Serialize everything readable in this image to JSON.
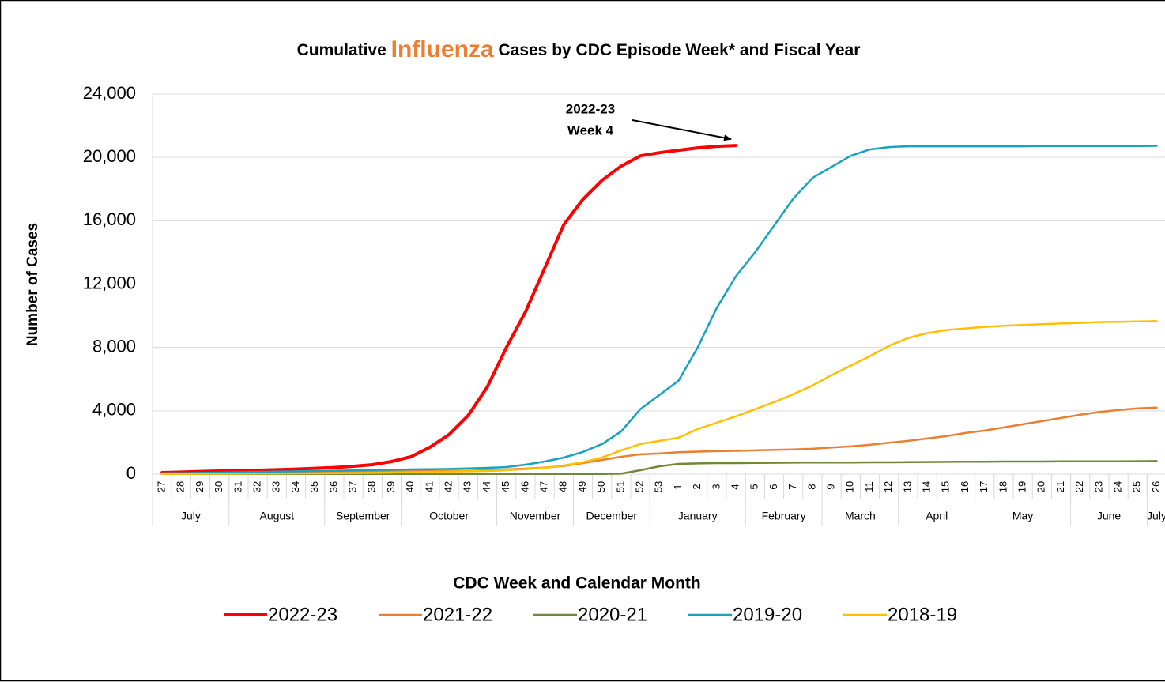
{
  "chart_data": {
    "type": "line",
    "title_parts": [
      "Cumulative ",
      "Influenza",
      " Cases by CDC Episode Week* and Fiscal Year"
    ],
    "y_label": "Number of Cases",
    "x_label": "CDC Week and Calendar Month",
    "annotation": [
      "2022-23",
      "Week 4"
    ],
    "categories": [
      "27",
      "28",
      "29",
      "30",
      "31",
      "32",
      "33",
      "34",
      "35",
      "36",
      "37",
      "38",
      "39",
      "40",
      "41",
      "42",
      "43",
      "44",
      "45",
      "46",
      "47",
      "48",
      "49",
      "50",
      "51",
      "52",
      "53",
      "1",
      "2",
      "3",
      "4",
      "5",
      "6",
      "7",
      "8",
      "9",
      "10",
      "11",
      "12",
      "13",
      "14",
      "15",
      "16",
      "17",
      "18",
      "19",
      "20",
      "21",
      "22",
      "23",
      "24",
      "25",
      "26"
    ],
    "month_groups": [
      {
        "label": "July",
        "span": 4
      },
      {
        "label": "August",
        "span": 5
      },
      {
        "label": "September",
        "span": 4
      },
      {
        "label": "October",
        "span": 5
      },
      {
        "label": "November",
        "span": 4
      },
      {
        "label": "December",
        "span": 4
      },
      {
        "label": "January",
        "span": 5
      },
      {
        "label": "February",
        "span": 4
      },
      {
        "label": "March",
        "span": 4
      },
      {
        "label": "April",
        "span": 4
      },
      {
        "label": "May",
        "span": 5
      },
      {
        "label": "June",
        "span": 4
      },
      {
        "label": "July",
        "span": 1
      }
    ],
    "ylim": [
      0,
      24000
    ],
    "yticks": [
      0,
      {
        "value": 4000,
        "label": "4,000"
      },
      {
        "value": 8000,
        "label": "8,000"
      },
      {
        "value": 12000,
        "label": "12,000"
      },
      {
        "value": 16000,
        "label": "16,000"
      },
      {
        "value": 20000,
        "label": "20,000"
      },
      {
        "value": 24000,
        "label": "24,000"
      }
    ],
    "grid": true,
    "legend": "bottom",
    "series": [
      {
        "name": "2022-23",
        "color": "#ff0000",
        "width": 4,
        "values": [
          100,
          130,
          170,
          200,
          230,
          250,
          280,
          320,
          370,
          420,
          500,
          600,
          800,
          1100,
          1700,
          2500,
          3700,
          5500,
          8000,
          10250,
          13000,
          15750,
          17350,
          18550,
          19450,
          20100,
          20300,
          20450,
          20600,
          20700,
          20750,
          null,
          null,
          null,
          null,
          null,
          null,
          null,
          null,
          null,
          null,
          null,
          null,
          null,
          null,
          null,
          null,
          null,
          null,
          null,
          null,
          null,
          null
        ]
      },
      {
        "name": "2021-22",
        "color": "#ed7d31",
        "width": 2.5,
        "values": [
          50,
          60,
          70,
          80,
          90,
          100,
          110,
          120,
          130,
          140,
          150,
          160,
          170,
          180,
          190,
          200,
          220,
          250,
          300,
          350,
          420,
          520,
          700,
          900,
          1100,
          1250,
          1300,
          1380,
          1420,
          1450,
          1470,
          1500,
          1530,
          1560,
          1600,
          1680,
          1750,
          1850,
          1980,
          2100,
          2250,
          2400,
          2600,
          2750,
          2950,
          3150,
          3350,
          3550,
          3750,
          3920,
          4050,
          4150,
          4200
        ]
      },
      {
        "name": "2020-21",
        "color": "#70883a",
        "width": 2.5,
        "values": [
          10,
          10,
          10,
          10,
          10,
          10,
          10,
          10,
          10,
          10,
          10,
          10,
          10,
          10,
          10,
          10,
          10,
          10,
          10,
          10,
          10,
          10,
          10,
          10,
          30,
          250,
          500,
          650,
          680,
          700,
          700,
          710,
          720,
          730,
          740,
          740,
          740,
          750,
          750,
          760,
          770,
          780,
          790,
          790,
          800,
          800,
          800,
          810,
          810,
          810,
          810,
          820,
          830
        ]
      },
      {
        "name": "2019-20",
        "color": "#17a2c0",
        "width": 2.5,
        "values": [
          50,
          60,
          80,
          100,
          120,
          140,
          160,
          180,
          200,
          220,
          240,
          260,
          280,
          300,
          310,
          330,
          360,
          400,
          450,
          600,
          800,
          1050,
          1400,
          1900,
          2700,
          4100,
          5000,
          5900,
          8000,
          10500,
          12500,
          14000,
          15700,
          17400,
          18700,
          19400,
          20100,
          20500,
          20650,
          20700,
          20700,
          20700,
          20700,
          20700,
          20700,
          20700,
          20720,
          20720,
          20720,
          20720,
          20720,
          20720,
          20730
        ]
      },
      {
        "name": "2018-19",
        "color": "#ffc000",
        "width": 2.5,
        "values": [
          10,
          15,
          20,
          25,
          30,
          35,
          40,
          45,
          50,
          60,
          70,
          80,
          100,
          120,
          140,
          160,
          180,
          200,
          250,
          320,
          400,
          550,
          750,
          1050,
          1500,
          1900,
          2100,
          2300,
          2850,
          3250,
          3650,
          4100,
          4550,
          5050,
          5600,
          6250,
          6850,
          7450,
          8100,
          8600,
          8900,
          9100,
          9200,
          9300,
          9370,
          9420,
          9470,
          9510,
          9550,
          9600,
          9620,
          9640,
          9660
        ]
      }
    ]
  }
}
